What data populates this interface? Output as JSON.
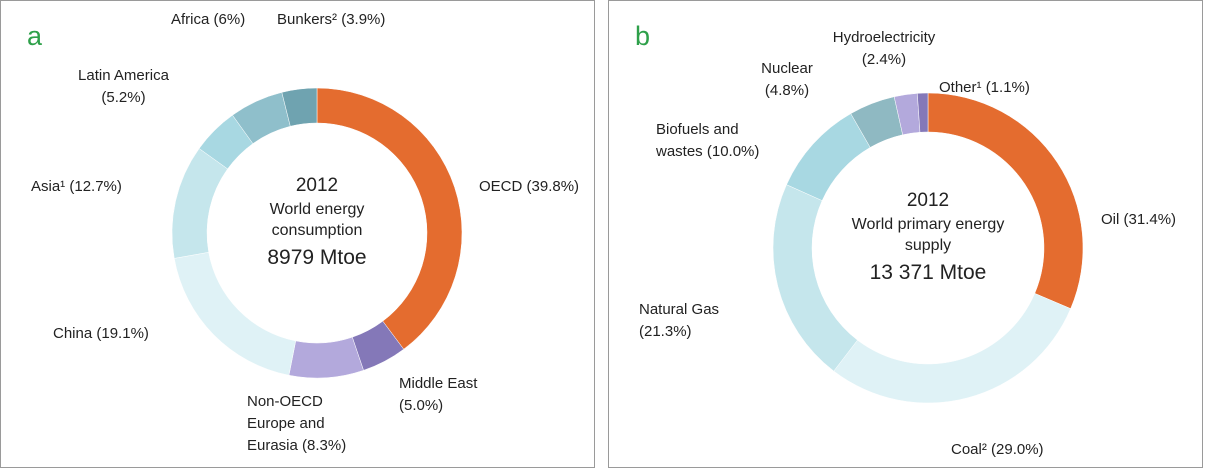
{
  "chart_data": [
    {
      "type": "pie",
      "donut": true,
      "panel_label": "a",
      "categories": [
        "OECD",
        "Middle East",
        "Non-OECD Europe and Eurasia",
        "China",
        "Asia¹",
        "Latin America",
        "Africa",
        "Bunkers²"
      ],
      "values": [
        39.8,
        5.0,
        8.3,
        19.1,
        12.7,
        5.2,
        6,
        3.9
      ],
      "value_labels": [
        "(39.8%)",
        "(5.0%)",
        "(8.3%)",
        "(19.1%)",
        "(12.7%)",
        "(5.2%)",
        "(6%)",
        "(3.9%)"
      ],
      "colors": [
        "#e46c2f",
        "#8478b8",
        "#b3a9dc",
        "#dff2f6",
        "#c5e6ec",
        "#a8d8e2",
        "#8fbfcb",
        "#6fa3b0"
      ],
      "center": {
        "year": "2012",
        "caption": "World energy consumption",
        "total": "8979 Mtoe"
      }
    },
    {
      "type": "pie",
      "donut": true,
      "panel_label": "b",
      "categories": [
        "Oil",
        "Coal²",
        "Natural Gas",
        "Biofuels and wastes",
        "Nuclear",
        "Hydroelectricity",
        "Other¹"
      ],
      "values": [
        31.4,
        29.0,
        21.3,
        10.0,
        4.8,
        2.4,
        1.1
      ],
      "value_labels": [
        "(31.4%)",
        "(29.0%)",
        "(21.3%)",
        "(10.0%)",
        "(4.8%)",
        "(2.4%)",
        "(1.1%)"
      ],
      "colors": [
        "#e46c2f",
        "#dff2f6",
        "#c5e6ec",
        "#a8d8e2",
        "#8fb9c2",
        "#b3a9dc",
        "#8478b8"
      ],
      "center": {
        "year": "2012",
        "caption": "World primary energy supply",
        "total": "13 371 Mtoe"
      }
    }
  ]
}
